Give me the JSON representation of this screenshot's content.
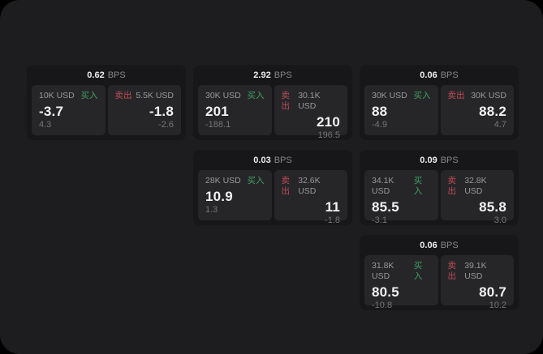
{
  "labels": {
    "bps_unit": "BPS",
    "buy": "买入",
    "sell": "卖出"
  },
  "colors": {
    "buy_green": "#42a065",
    "sell_red": "#bf4b59",
    "panel_background": "#1d1d1f",
    "card_background": "#171719",
    "tile_background": "#262628"
  },
  "cards": [
    {
      "row": 1,
      "col": 1,
      "bps": "0.62",
      "buy": {
        "amount": "10K USD",
        "value": "-3.7",
        "sub": "4.3"
      },
      "sell": {
        "amount": "5.5K USD",
        "value": "-1.8",
        "sub": "-2.6"
      }
    },
    {
      "row": 1,
      "col": 2,
      "bps": "2.92",
      "buy": {
        "amount": "30K USD",
        "value": "201",
        "sub": "-188.1"
      },
      "sell": {
        "amount": "30.1K USD",
        "value": "210",
        "sub": "196.5"
      }
    },
    {
      "row": 1,
      "col": 3,
      "bps": "0.06",
      "buy": {
        "amount": "30K USD",
        "value": "88",
        "sub": "-4.9"
      },
      "sell": {
        "amount": "30K USD",
        "value": "88.2",
        "sub": "4.7"
      }
    },
    {
      "row": 2,
      "col": 2,
      "bps": "0.03",
      "buy": {
        "amount": "28K USD",
        "value": "10.9",
        "sub": "1.3"
      },
      "sell": {
        "amount": "32.6K USD",
        "value": "11",
        "sub": "-1.8"
      }
    },
    {
      "row": 2,
      "col": 3,
      "bps": "0.09",
      "buy": {
        "amount": "34.1K USD",
        "value": "85.5",
        "sub": "-3.1"
      },
      "sell": {
        "amount": "32.8K USD",
        "value": "85.8",
        "sub": "3.0"
      }
    },
    {
      "row": 3,
      "col": 3,
      "bps": "0.06",
      "buy": {
        "amount": "31.8K USD",
        "value": "80.5",
        "sub": "-10.8"
      },
      "sell": {
        "amount": "39.1K USD",
        "value": "80.7",
        "sub": "10.2"
      }
    }
  ]
}
